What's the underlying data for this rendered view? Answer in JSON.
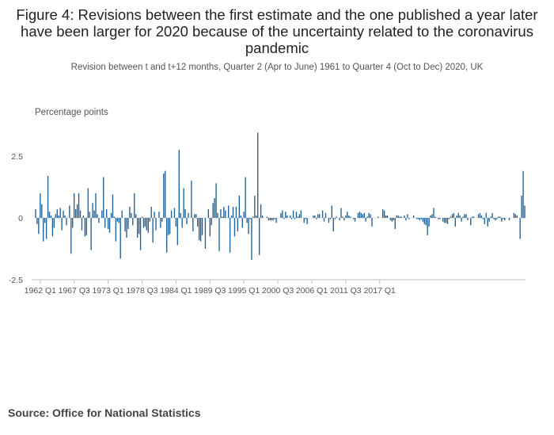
{
  "chart_data": {
    "type": "bar",
    "title": "Figure 4: Revisions between the first estimate and the one published a year later have been larger for 2020 because of the uncertainty related to the coronavirus pandemic",
    "subtitle": "Revision between t and t+12 months, Quarter 2 (Apr to June) 1961 to Quarter 4 (Oct to Dec) 2020, UK",
    "ylabel": "Percentage points",
    "xlabel": "",
    "ylim": [
      -2.5,
      3.6
    ],
    "yticks": [
      {
        "value": 2.5,
        "label": "2.5"
      },
      {
        "value": 0,
        "label": "0"
      },
      {
        "value": -2.5,
        "label": "-2.5"
      }
    ],
    "xtick_labels": [
      "1962 Q1",
      "1967 Q3",
      "1973 Q1",
      "1978 Q3",
      "1984 Q1",
      "1989 Q3",
      "1995 Q1",
      "2000 Q3",
      "2006 Q1",
      "2011 Q3",
      "2017 Q1"
    ],
    "start_period": "1961 Q2",
    "series": [
      {
        "name": "Revision",
        "color": "#206095",
        "values": [
          0.35,
          -0.25,
          -0.65,
          1.0,
          0.55,
          -0.95,
          -0.2,
          -0.85,
          1.7,
          0.25,
          0.1,
          -0.75,
          -0.4,
          0.15,
          0.35,
          0.1,
          0.4,
          -0.5,
          0.3,
          0.1,
          -0.3,
          0.0,
          0.5,
          -1.45,
          -0.4,
          1.0,
          0.35,
          0.55,
          1.0,
          0.3,
          -0.5,
          0.1,
          -0.75,
          -0.7,
          1.2,
          0.25,
          -1.3,
          0.6,
          0.3,
          1.0,
          0.15,
          -0.2,
          0.0,
          0.3,
          1.65,
          -0.4,
          0.35,
          -0.45,
          -0.6,
          0.2,
          0.95,
          0.05,
          -0.95,
          -0.15,
          -0.2,
          -1.65,
          0.3,
          0.0,
          -0.55,
          -0.8,
          -0.45,
          0.45,
          0.2,
          -0.3,
          1.0,
          0.15,
          -0.8,
          -0.65,
          -1.3,
          0.05,
          -0.4,
          -0.35,
          -0.5,
          -0.6,
          -0.15,
          0.45,
          -1.0,
          0.25,
          -0.5,
          0.0,
          0.25,
          -0.4,
          -0.15,
          1.8,
          1.9,
          -1.4,
          -0.7,
          -0.65,
          0.3,
          0.0,
          0.4,
          -0.35,
          -1.1,
          2.75,
          0.2,
          -0.4,
          1.2,
          0.35,
          -0.25,
          0.2,
          0.0,
          1.5,
          -0.55,
          0.15,
          0.15,
          -0.35,
          -0.9,
          -0.95,
          -0.7,
          0.0,
          -1.25,
          0.0,
          0.35,
          -0.75,
          -0.3,
          0.6,
          0.8,
          1.4,
          0.2,
          -1.35,
          0.35,
          0.05,
          0.45,
          0.3,
          0.0,
          0.5,
          -1.4,
          0.1,
          0.45,
          -0.75,
          0.45,
          -0.55,
          0.9,
          0.1,
          -0.4,
          0.25,
          1.65,
          -0.2,
          -0.65,
          -0.05,
          -1.7,
          0.05,
          0.9,
          0.1,
          3.45,
          -1.5,
          0.55,
          0.1,
          0.0,
          0.0,
          0.05,
          -0.1,
          -0.1,
          -0.1,
          -0.1,
          -0.05,
          -0.2,
          0.0,
          0.0,
          0.2,
          0.3,
          -0.05,
          0.25,
          0.1,
          0.0,
          0.1,
          -0.05,
          0.3,
          -0.05,
          0.25,
          0.05,
          0.15,
          0.3,
          0.0,
          -0.2,
          -0.05,
          -0.25,
          0.0,
          0.0,
          0.0,
          0.1,
          0.1,
          -0.05,
          0.15,
          0.15,
          0.0,
          0.3,
          -0.15,
          0.2,
          0.0,
          -0.2,
          -0.05,
          0.5,
          -0.55,
          -0.05,
          0.05,
          0.0,
          -0.1,
          0.4,
          0.05,
          -0.1,
          0.1,
          0.25,
          0.1,
          0.05,
          0.0,
          -0.05,
          -0.15,
          0.0,
          0.2,
          0.25,
          0.2,
          0.15,
          0.2,
          -0.15,
          0.05,
          0.2,
          0.15,
          -0.35,
          0.0,
          0.0,
          0.0,
          0.05,
          0.0,
          0.0,
          0.35,
          0.3,
          0.1,
          0.1,
          0.0,
          -0.1,
          -0.15,
          -0.1,
          -0.45,
          0.1,
          0.1,
          0.05,
          0.05,
          0.0,
          0.1,
          -0.1,
          0.15,
          -0.05,
          0.0,
          0.0,
          0.1,
          0.0,
          -0.05,
          -0.05,
          -0.1,
          -0.05,
          -0.15,
          -0.25,
          -0.3,
          -0.7,
          -0.35,
          0.1,
          0.15,
          0.4,
          0.05,
          0.0,
          -0.05,
          -0.05,
          0.0,
          -0.15,
          -0.2,
          -0.2,
          -0.25,
          -0.05,
          0.05,
          0.15,
          0.2,
          -0.35,
          0.1,
          0.2,
          0.1,
          -0.15,
          0.05,
          0.15,
          0.15,
          -0.1,
          0.0,
          -0.3,
          0.05,
          0.05,
          0.0,
          0.0,
          0.15,
          0.2,
          0.1,
          -0.05,
          -0.25,
          0.2,
          -0.35,
          -0.15,
          0.05,
          0.2,
          -0.05,
          -0.1,
          -0.05,
          0.05,
          0.05,
          -0.15,
          -0.05,
          -0.1,
          0.0,
          0.0,
          -0.1,
          0.0,
          0.0,
          0.2,
          0.15,
          0.1,
          0.0,
          -0.85,
          0.9,
          1.9,
          0.5
        ]
      }
    ]
  },
  "source": {
    "text": "Source: Office for National Statistics"
  }
}
